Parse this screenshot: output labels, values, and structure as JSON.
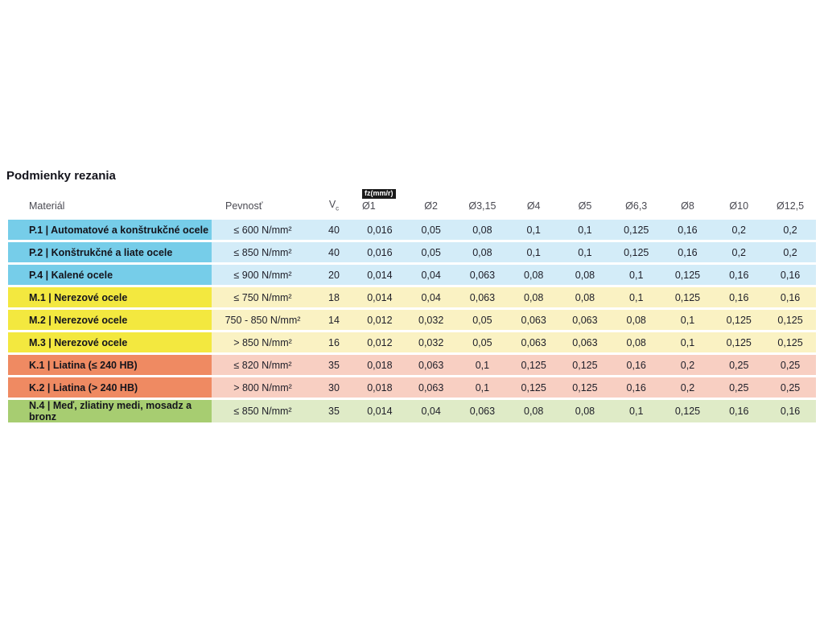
{
  "page": {
    "title": "Podmienky rezania"
  },
  "table": {
    "headers": {
      "material": "Materiál",
      "strength": "Pevnosť",
      "vc_main": "V",
      "vc_sub": "c",
      "feed_badge": "fz(mm/r)",
      "diameters": [
        "Ø1",
        "Ø2",
        "Ø3,15",
        "Ø4",
        "Ø5",
        "Ø6,3",
        "Ø8",
        "Ø10",
        "Ø12,5"
      ]
    },
    "group_colors": {
      "P": {
        "label": "#76cde9",
        "tint": "#d3ecf8"
      },
      "M": {
        "label": "#f3e83f",
        "tint": "#faf2c3"
      },
      "K": {
        "label": "#ef8a62",
        "tint": "#f8cfc2"
      },
      "N": {
        "label": "#a7cd71",
        "tint": "#dfebc7"
      }
    },
    "rows": [
      {
        "group": "P",
        "material": "P.1 | Automatové a konštrukčné ocele",
        "strength": "≤ 600 N/mm²",
        "vc": "40",
        "feeds": [
          "0,016",
          "0,05",
          "0,08",
          "0,1",
          "0,1",
          "0,125",
          "0,16",
          "0,2",
          "0,2"
        ]
      },
      {
        "group": "P",
        "material": "P.2 | Konštrukčné a liate ocele",
        "strength": "≤ 850 N/mm²",
        "vc": "40",
        "feeds": [
          "0,016",
          "0,05",
          "0,08",
          "0,1",
          "0,1",
          "0,125",
          "0,16",
          "0,2",
          "0,2"
        ]
      },
      {
        "group": "P",
        "material": "P.4 | Kalené ocele",
        "strength": "≤ 900 N/mm²",
        "vc": "20",
        "feeds": [
          "0,014",
          "0,04",
          "0,063",
          "0,08",
          "0,08",
          "0,1",
          "0,125",
          "0,16",
          "0,16"
        ]
      },
      {
        "group": "M",
        "material": "M.1 | Nerezové ocele",
        "strength": "≤ 750 N/mm²",
        "vc": "18",
        "feeds": [
          "0,014",
          "0,04",
          "0,063",
          "0,08",
          "0,08",
          "0,1",
          "0,125",
          "0,16",
          "0,16"
        ]
      },
      {
        "group": "M",
        "material": "M.2 | Nerezové ocele",
        "strength": "750 - 850 N/mm²",
        "vc": "14",
        "feeds": [
          "0,012",
          "0,032",
          "0,05",
          "0,063",
          "0,063",
          "0,08",
          "0,1",
          "0,125",
          "0,125"
        ]
      },
      {
        "group": "M",
        "material": "M.3 | Nerezové ocele",
        "strength": "> 850 N/mm²",
        "vc": "16",
        "feeds": [
          "0,012",
          "0,032",
          "0,05",
          "0,063",
          "0,063",
          "0,08",
          "0,1",
          "0,125",
          "0,125"
        ]
      },
      {
        "group": "K",
        "material": "K.1 | Liatina (≤ 240 HB)",
        "strength": "≤ 820 N/mm²",
        "vc": "35",
        "feeds": [
          "0,018",
          "0,063",
          "0,1",
          "0,125",
          "0,125",
          "0,16",
          "0,2",
          "0,25",
          "0,25"
        ]
      },
      {
        "group": "K",
        "material": "K.2 | Liatina (> 240 HB)",
        "strength": "> 800 N/mm²",
        "vc": "30",
        "feeds": [
          "0,018",
          "0,063",
          "0,1",
          "0,125",
          "0,125",
          "0,16",
          "0,2",
          "0,25",
          "0,25"
        ]
      },
      {
        "group": "N",
        "material": "N.4 | Meď, zliatiny medi, mosadz a bronz",
        "strength": "≤ 850 N/mm²",
        "vc": "35",
        "feeds": [
          "0,014",
          "0,04",
          "0,063",
          "0,08",
          "0,08",
          "0,1",
          "0,125",
          "0,16",
          "0,16"
        ]
      }
    ]
  }
}
